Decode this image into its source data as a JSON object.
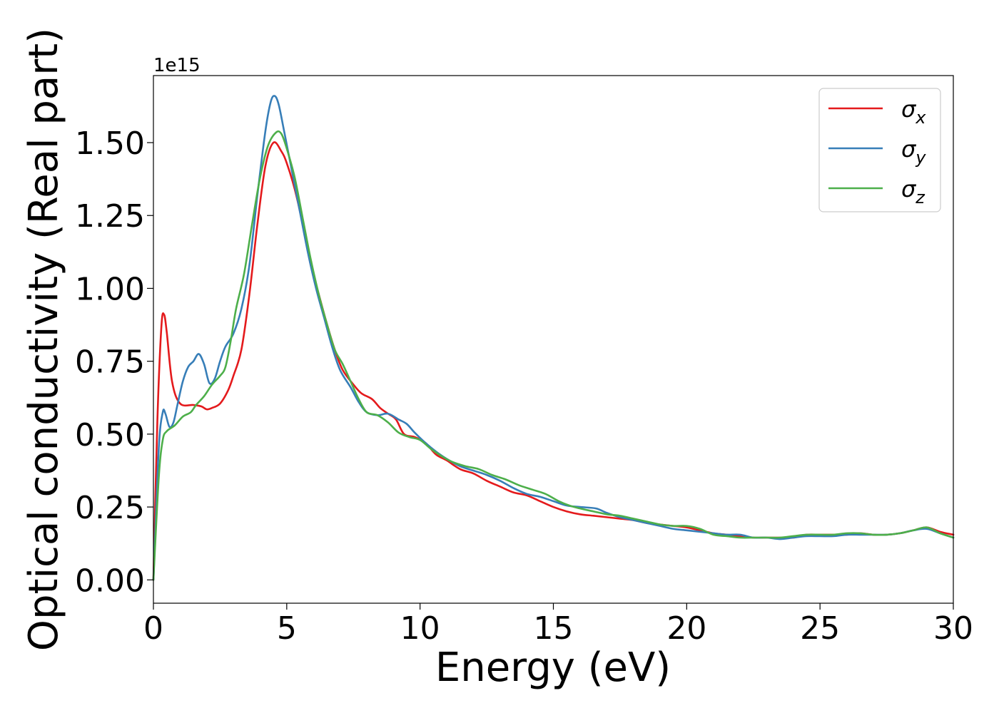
{
  "chart_data": {
    "type": "line",
    "title": "",
    "xlabel": "Energy (eV)",
    "ylabel": "Optical conductivity (Real part)",
    "y_offset_label": "1e15",
    "xlim": [
      0,
      30
    ],
    "ylim": [
      -0.08,
      1.73
    ],
    "y_scale": 1000000000000000.0,
    "x_ticks": [
      0,
      5,
      10,
      15,
      20,
      25,
      30
    ],
    "y_ticks": [
      0.0,
      0.25,
      0.5,
      0.75,
      1.0,
      1.25,
      1.5
    ],
    "x_tick_labels": [
      "0",
      "5",
      "10",
      "15",
      "20",
      "25",
      "30"
    ],
    "y_tick_labels": [
      "0.00",
      "0.25",
      "0.50",
      "0.75",
      "1.00",
      "1.25",
      "1.50"
    ],
    "grid": false,
    "legend_position": "top-right",
    "series": [
      {
        "name": "σ",
        "subscript": "x",
        "color": "#e41a1c",
        "points": [
          [
            0,
            0
          ],
          [
            0.15,
            0.55
          ],
          [
            0.3,
            0.87
          ],
          [
            0.4,
            0.91
          ],
          [
            0.5,
            0.85
          ],
          [
            0.7,
            0.68
          ],
          [
            1.0,
            0.605
          ],
          [
            1.5,
            0.6
          ],
          [
            1.8,
            0.595
          ],
          [
            2.0,
            0.585
          ],
          [
            2.2,
            0.59
          ],
          [
            2.5,
            0.605
          ],
          [
            2.8,
            0.65
          ],
          [
            3.0,
            0.7
          ],
          [
            3.3,
            0.79
          ],
          [
            3.6,
            0.98
          ],
          [
            3.9,
            1.22
          ],
          [
            4.2,
            1.42
          ],
          [
            4.5,
            1.5
          ],
          [
            4.8,
            1.47
          ],
          [
            5.0,
            1.43
          ],
          [
            5.3,
            1.34
          ],
          [
            5.6,
            1.22
          ],
          [
            5.9,
            1.08
          ],
          [
            6.2,
            0.98
          ],
          [
            6.5,
            0.88
          ],
          [
            6.8,
            0.79
          ],
          [
            7.1,
            0.72
          ],
          [
            7.5,
            0.67
          ],
          [
            7.8,
            0.64
          ],
          [
            8.2,
            0.62
          ],
          [
            8.5,
            0.59
          ],
          [
            8.8,
            0.57
          ],
          [
            9.1,
            0.55
          ],
          [
            9.4,
            0.5
          ],
          [
            9.8,
            0.49
          ],
          [
            10.2,
            0.47
          ],
          [
            10.6,
            0.43
          ],
          [
            11.0,
            0.41
          ],
          [
            11.5,
            0.38
          ],
          [
            12.0,
            0.365
          ],
          [
            12.5,
            0.34
          ],
          [
            13.0,
            0.32
          ],
          [
            13.5,
            0.3
          ],
          [
            14.0,
            0.29
          ],
          [
            14.5,
            0.27
          ],
          [
            15.0,
            0.25
          ],
          [
            15.5,
            0.235
          ],
          [
            16.0,
            0.225
          ],
          [
            16.5,
            0.22
          ],
          [
            17.0,
            0.215
          ],
          [
            17.5,
            0.21
          ],
          [
            18.0,
            0.205
          ],
          [
            18.5,
            0.195
          ],
          [
            19.0,
            0.19
          ],
          [
            19.5,
            0.185
          ],
          [
            20.0,
            0.18
          ],
          [
            20.5,
            0.17
          ],
          [
            21.0,
            0.16
          ],
          [
            21.5,
            0.155
          ],
          [
            22.0,
            0.15
          ],
          [
            22.5,
            0.145
          ],
          [
            23.0,
            0.145
          ],
          [
            23.5,
            0.145
          ],
          [
            24.0,
            0.145
          ],
          [
            24.5,
            0.155
          ],
          [
            25.0,
            0.155
          ],
          [
            25.5,
            0.155
          ],
          [
            26.0,
            0.155
          ],
          [
            26.5,
            0.16
          ],
          [
            27.0,
            0.155
          ],
          [
            27.5,
            0.155
          ],
          [
            28.0,
            0.16
          ],
          [
            28.5,
            0.17
          ],
          [
            29.0,
            0.18
          ],
          [
            29.5,
            0.165
          ],
          [
            30.0,
            0.155
          ]
        ]
      },
      {
        "name": "σ",
        "subscript": "y",
        "color": "#377eb8",
        "points": [
          [
            0,
            0
          ],
          [
            0.2,
            0.45
          ],
          [
            0.35,
            0.575
          ],
          [
            0.45,
            0.57
          ],
          [
            0.6,
            0.525
          ],
          [
            0.75,
            0.54
          ],
          [
            0.9,
            0.6
          ],
          [
            1.1,
            0.68
          ],
          [
            1.3,
            0.73
          ],
          [
            1.5,
            0.75
          ],
          [
            1.7,
            0.775
          ],
          [
            1.9,
            0.74
          ],
          [
            2.1,
            0.675
          ],
          [
            2.3,
            0.69
          ],
          [
            2.5,
            0.75
          ],
          [
            2.7,
            0.8
          ],
          [
            3.0,
            0.845
          ],
          [
            3.3,
            0.93
          ],
          [
            3.6,
            1.08
          ],
          [
            3.9,
            1.32
          ],
          [
            4.2,
            1.54
          ],
          [
            4.4,
            1.64
          ],
          [
            4.55,
            1.66
          ],
          [
            4.7,
            1.63
          ],
          [
            4.9,
            1.54
          ],
          [
            5.2,
            1.4
          ],
          [
            5.5,
            1.26
          ],
          [
            5.8,
            1.12
          ],
          [
            6.1,
            1.0
          ],
          [
            6.4,
            0.9
          ],
          [
            6.7,
            0.8
          ],
          [
            7.0,
            0.72
          ],
          [
            7.4,
            0.66
          ],
          [
            7.7,
            0.61
          ],
          [
            8.0,
            0.575
          ],
          [
            8.4,
            0.565
          ],
          [
            8.8,
            0.57
          ],
          [
            9.2,
            0.55
          ],
          [
            9.5,
            0.535
          ],
          [
            9.8,
            0.505
          ],
          [
            10.2,
            0.47
          ],
          [
            10.6,
            0.44
          ],
          [
            11.0,
            0.415
          ],
          [
            11.5,
            0.39
          ],
          [
            12.0,
            0.375
          ],
          [
            12.5,
            0.36
          ],
          [
            13.0,
            0.34
          ],
          [
            13.5,
            0.315
          ],
          [
            14.0,
            0.295
          ],
          [
            14.5,
            0.285
          ],
          [
            15.0,
            0.27
          ],
          [
            15.5,
            0.255
          ],
          [
            16.0,
            0.25
          ],
          [
            16.6,
            0.245
          ],
          [
            17.0,
            0.23
          ],
          [
            17.5,
            0.215
          ],
          [
            18.0,
            0.205
          ],
          [
            18.5,
            0.195
          ],
          [
            19.0,
            0.185
          ],
          [
            19.5,
            0.175
          ],
          [
            20.0,
            0.17
          ],
          [
            20.5,
            0.165
          ],
          [
            21.0,
            0.16
          ],
          [
            21.5,
            0.155
          ],
          [
            22.0,
            0.155
          ],
          [
            22.5,
            0.145
          ],
          [
            23.0,
            0.145
          ],
          [
            23.5,
            0.14
          ],
          [
            24.0,
            0.145
          ],
          [
            24.5,
            0.15
          ],
          [
            25.0,
            0.15
          ],
          [
            25.5,
            0.15
          ],
          [
            26.0,
            0.155
          ],
          [
            26.5,
            0.155
          ],
          [
            27.0,
            0.155
          ],
          [
            27.5,
            0.155
          ],
          [
            28.0,
            0.16
          ],
          [
            28.5,
            0.17
          ],
          [
            29.0,
            0.175
          ],
          [
            29.5,
            0.16
          ],
          [
            30.0,
            0.145
          ]
        ]
      },
      {
        "name": "σ",
        "subscript": "z",
        "color": "#4daf4a",
        "points": [
          [
            0,
            0
          ],
          [
            0.2,
            0.35
          ],
          [
            0.35,
            0.48
          ],
          [
            0.5,
            0.51
          ],
          [
            0.8,
            0.53
          ],
          [
            1.1,
            0.56
          ],
          [
            1.4,
            0.575
          ],
          [
            1.6,
            0.6
          ],
          [
            1.9,
            0.63
          ],
          [
            2.2,
            0.67
          ],
          [
            2.5,
            0.7
          ],
          [
            2.7,
            0.73
          ],
          [
            2.9,
            0.82
          ],
          [
            3.1,
            0.93
          ],
          [
            3.4,
            1.05
          ],
          [
            3.7,
            1.22
          ],
          [
            4.0,
            1.38
          ],
          [
            4.3,
            1.49
          ],
          [
            4.6,
            1.535
          ],
          [
            4.8,
            1.53
          ],
          [
            5.0,
            1.48
          ],
          [
            5.3,
            1.38
          ],
          [
            5.6,
            1.24
          ],
          [
            5.9,
            1.1
          ],
          [
            6.2,
            0.98
          ],
          [
            6.5,
            0.88
          ],
          [
            6.8,
            0.79
          ],
          [
            7.1,
            0.74
          ],
          [
            7.4,
            0.68
          ],
          [
            7.7,
            0.62
          ],
          [
            8.0,
            0.575
          ],
          [
            8.4,
            0.565
          ],
          [
            8.8,
            0.54
          ],
          [
            9.2,
            0.505
          ],
          [
            9.6,
            0.49
          ],
          [
            10.0,
            0.48
          ],
          [
            10.4,
            0.45
          ],
          [
            10.8,
            0.425
          ],
          [
            11.2,
            0.405
          ],
          [
            11.7,
            0.39
          ],
          [
            12.2,
            0.38
          ],
          [
            12.7,
            0.36
          ],
          [
            13.2,
            0.345
          ],
          [
            13.7,
            0.325
          ],
          [
            14.2,
            0.31
          ],
          [
            14.7,
            0.295
          ],
          [
            15.2,
            0.27
          ],
          [
            15.6,
            0.255
          ],
          [
            16.0,
            0.245
          ],
          [
            16.5,
            0.235
          ],
          [
            17.0,
            0.225
          ],
          [
            17.5,
            0.22
          ],
          [
            18.0,
            0.21
          ],
          [
            18.5,
            0.2
          ],
          [
            19.0,
            0.19
          ],
          [
            19.5,
            0.185
          ],
          [
            20.0,
            0.185
          ],
          [
            20.5,
            0.175
          ],
          [
            21.0,
            0.155
          ],
          [
            21.5,
            0.15
          ],
          [
            22.0,
            0.145
          ],
          [
            22.5,
            0.145
          ],
          [
            23.0,
            0.145
          ],
          [
            23.5,
            0.145
          ],
          [
            24.0,
            0.15
          ],
          [
            24.5,
            0.155
          ],
          [
            25.0,
            0.155
          ],
          [
            25.5,
            0.155
          ],
          [
            26.0,
            0.16
          ],
          [
            26.5,
            0.16
          ],
          [
            27.0,
            0.155
          ],
          [
            27.5,
            0.155
          ],
          [
            28.0,
            0.16
          ],
          [
            28.5,
            0.17
          ],
          [
            29.0,
            0.18
          ],
          [
            29.5,
            0.16
          ],
          [
            30.0,
            0.145
          ]
        ]
      }
    ]
  }
}
